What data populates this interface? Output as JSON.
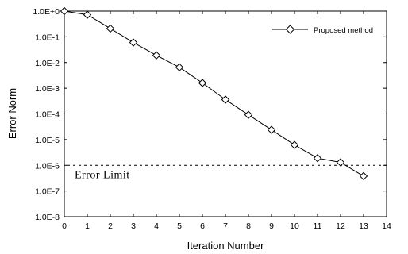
{
  "chart_data": {
    "type": "line",
    "xlabel": "Iteration Number",
    "ylabel": "Error Norm",
    "xlim": [
      0,
      14
    ],
    "ylim": [
      1e-08,
      1
    ],
    "yscale": "log",
    "x_ticks": [
      "0",
      "1",
      "2",
      "3",
      "4",
      "5",
      "6",
      "7",
      "8",
      "9",
      "10",
      "11",
      "12",
      "13",
      "14"
    ],
    "y_ticks": [
      "1.0E-8",
      "1.0E-7",
      "1.0E-6",
      "1.0E-5",
      "1.0E-4",
      "1.0E-3",
      "1.0E-2",
      "1.0E-1",
      "1.0E+0"
    ],
    "grid": false,
    "legend_position": "top-right",
    "series": [
      {
        "name": "Proposed method",
        "marker": "diamond",
        "color": "#000000",
        "x": [
          0,
          1,
          2,
          3,
          4,
          5,
          6,
          7,
          8,
          9,
          10,
          11,
          12,
          13
        ],
        "y": [
          1.0,
          0.72,
          0.21,
          0.06,
          0.019,
          0.0065,
          0.0016,
          0.00036,
          9.2e-05,
          2.4e-05,
          6.2e-06,
          1.9e-06,
          1.3e-06,
          3.8e-07
        ]
      }
    ],
    "reference_line": {
      "y": 1e-06,
      "style": "dashed"
    },
    "annotation": {
      "text": "Error Limit"
    }
  }
}
